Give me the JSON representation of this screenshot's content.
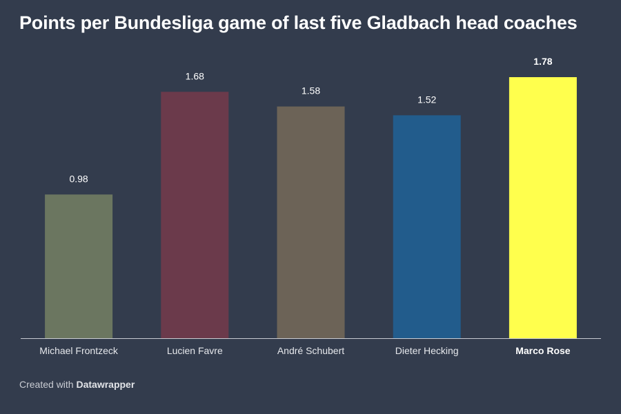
{
  "title": "Points per Bundesliga game of last five Gladbach head coaches",
  "footer": {
    "prefix": "Created with",
    "brand": "Datawrapper"
  },
  "chart_data": {
    "type": "bar",
    "title": "Points per Bundesliga game of last five Gladbach head coaches",
    "xlabel": "",
    "ylabel": "",
    "ylim": [
      0,
      1.78
    ],
    "grid": false,
    "categories": [
      "Michael Frontzeck",
      "Lucien Favre",
      "André Schubert",
      "Dieter Hecking",
      "Marco Rose"
    ],
    "values": [
      0.98,
      1.68,
      1.58,
      1.52,
      1.78
    ],
    "value_labels": [
      "0.98",
      "1.68",
      "1.58",
      "1.52",
      "1.78"
    ],
    "colors": [
      "#6b7660",
      "#6b3a4b",
      "#6c6357",
      "#225c8c",
      "#ffff4d"
    ],
    "highlighted": [
      "Marco Rose"
    ],
    "text_color": "#ffffff",
    "axis_color": "#c9ccd3"
  }
}
